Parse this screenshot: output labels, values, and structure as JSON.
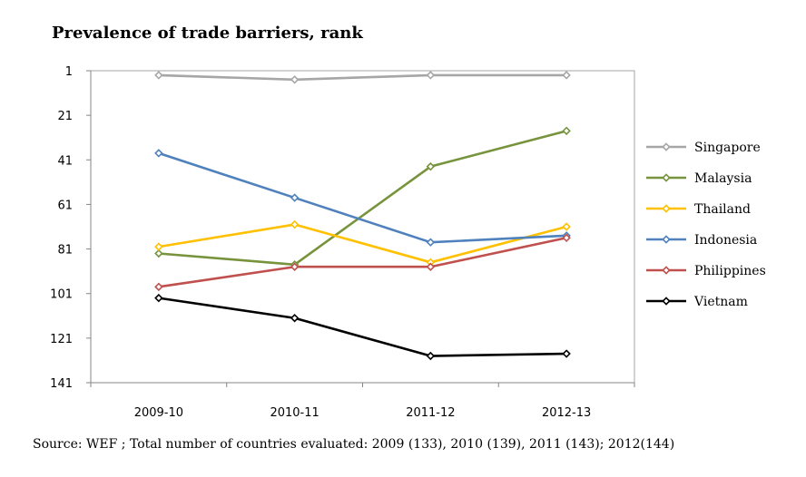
{
  "chart_data": {
    "type": "line",
    "title": "Prevalence of trade barriers, rank",
    "xlabel": "",
    "ylabel": "",
    "categories": [
      "2009-10",
      "2010-11",
      "2011-12",
      "2012-13"
    ],
    "y_ticks": [
      "1",
      "21",
      "41",
      "61",
      "81",
      "101",
      "121",
      "141"
    ],
    "ylim": [
      1,
      141
    ],
    "y_inverted": true,
    "legend_position": "right",
    "series": [
      {
        "name": "Singapore",
        "color": "#a6a6a6",
        "values": [
          3,
          5,
          3,
          3
        ]
      },
      {
        "name": "Malaysia",
        "color": "#77933c",
        "values": [
          83,
          88,
          44,
          28
        ]
      },
      {
        "name": "Thailand",
        "color": "#ffc000",
        "values": [
          80,
          70,
          87,
          71
        ]
      },
      {
        "name": "Indonesia",
        "color": "#4f81bd",
        "values": [
          38,
          58,
          78,
          75
        ]
      },
      {
        "name": "Philippines",
        "color": "#c0504d",
        "values": [
          98,
          89,
          89,
          76
        ]
      },
      {
        "name": "Vietnam",
        "color": "#000000",
        "values": [
          103,
          112,
          129,
          128
        ]
      }
    ],
    "source": "Source: WEF ; Total number of countries evaluated: 2009 (133), 2010 (139), 2011 (143); 2012(144)"
  }
}
